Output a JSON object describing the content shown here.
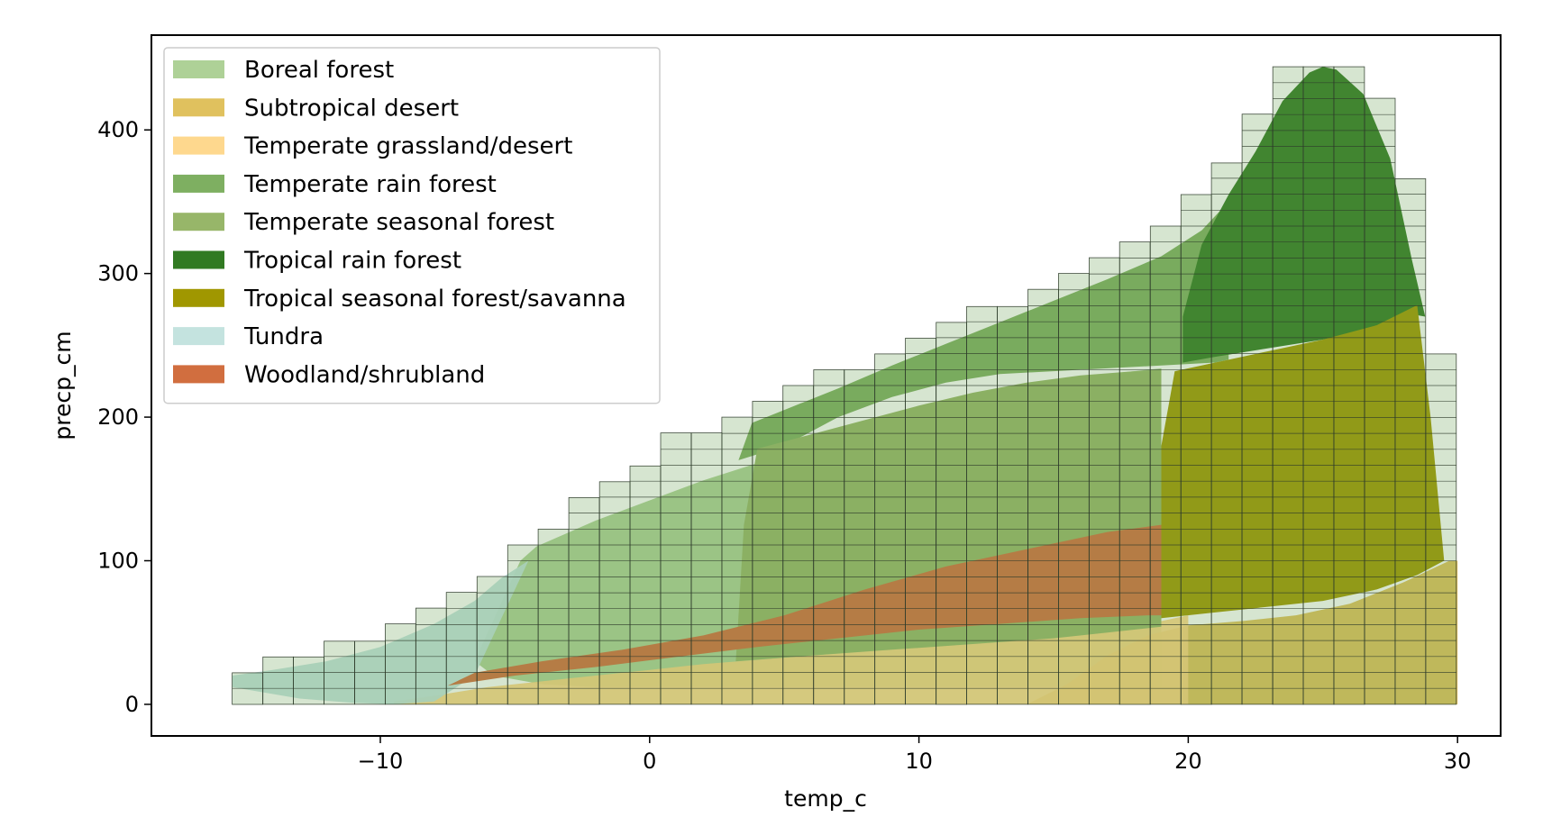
{
  "chart_data": {
    "type": "area",
    "xlabel": "temp_c",
    "ylabel": "precp_cm",
    "xlim": [
      -18.5,
      31.6
    ],
    "ylim": [
      -22,
      466
    ],
    "xticks": [
      {
        "value": -10,
        "label": "−10"
      },
      {
        "value": 0,
        "label": "0"
      },
      {
        "value": 10,
        "label": "10"
      },
      {
        "value": 20,
        "label": "20"
      },
      {
        "value": 30,
        "label": "30"
      }
    ],
    "yticks": [
      {
        "value": 0,
        "label": "0"
      },
      {
        "value": 100,
        "label": "100"
      },
      {
        "value": 200,
        "label": "200"
      },
      {
        "value": 300,
        "label": "300"
      },
      {
        "value": 400,
        "label": "400"
      }
    ],
    "legend_position": "upper-left",
    "grid": false,
    "series": [
      {
        "name": "Boreal forest",
        "color": "#a5cc8c",
        "opacity": 0.9,
        "upper": [
          [
            -4.8,
            100
          ],
          [
            -4.2,
            110
          ],
          [
            -2,
            128
          ],
          [
            0,
            142
          ],
          [
            2,
            156
          ],
          [
            4,
            168
          ],
          [
            6,
            180
          ],
          [
            8,
            192
          ],
          [
            10,
            204
          ],
          [
            12,
            214
          ],
          [
            14,
            222
          ],
          [
            17,
            230
          ],
          [
            19,
            234
          ]
        ],
        "lower": [
          [
            -6.5,
            30
          ],
          [
            -5.8,
            20
          ],
          [
            -4,
            14
          ],
          [
            -2,
            12
          ],
          [
            0,
            12
          ],
          [
            2,
            12
          ],
          [
            4,
            12
          ],
          [
            6,
            12
          ],
          [
            8,
            12
          ],
          [
            10,
            12
          ],
          [
            12,
            12
          ],
          [
            14,
            12
          ],
          [
            17,
            12
          ],
          [
            19,
            12
          ]
        ]
      },
      {
        "name": "Subtropical desert",
        "color": "#ddba4c",
        "opacity": 0.9,
        "upper": [
          [
            14,
            0
          ],
          [
            15.5,
            14
          ],
          [
            17,
            34
          ],
          [
            18.5,
            48
          ],
          [
            20,
            55
          ],
          [
            22,
            58
          ],
          [
            24,
            62
          ],
          [
            26,
            70
          ],
          [
            28,
            85
          ],
          [
            29.7,
            100
          ],
          [
            30,
            100
          ]
        ],
        "lower": [
          [
            14,
            0
          ],
          [
            16,
            0
          ],
          [
            20,
            0
          ],
          [
            25,
            0
          ],
          [
            30,
            0
          ]
        ]
      },
      {
        "name": "Temperate grassland/desert",
        "color": "#fed482",
        "opacity": 0.9,
        "upper": [
          [
            -9.5,
            2
          ],
          [
            -8,
            6
          ],
          [
            -6,
            12
          ],
          [
            -4,
            16
          ],
          [
            -2,
            20
          ],
          [
            0,
            24
          ],
          [
            2,
            28
          ],
          [
            4,
            31
          ],
          [
            6,
            34
          ],
          [
            8,
            37
          ],
          [
            10,
            40
          ],
          [
            12,
            43
          ],
          [
            14,
            46
          ],
          [
            16,
            50
          ],
          [
            18,
            55
          ],
          [
            19,
            58
          ],
          [
            20,
            62
          ]
        ],
        "lower": [
          [
            -9.5,
            0
          ],
          [
            -5,
            0
          ],
          [
            0,
            0
          ],
          [
            5,
            0
          ],
          [
            10,
            0
          ],
          [
            15,
            0
          ],
          [
            20,
            0
          ]
        ]
      },
      {
        "name": "Temperate rain forest",
        "color": "#77ab59",
        "opacity": 0.95,
        "upper": [
          [
            3.3,
            170
          ],
          [
            3.8,
            196
          ],
          [
            5,
            205
          ],
          [
            7,
            220
          ],
          [
            9,
            236
          ],
          [
            11,
            251
          ],
          [
            13,
            266
          ],
          [
            15,
            281
          ],
          [
            17,
            296
          ],
          [
            19,
            312
          ],
          [
            20.5,
            330
          ],
          [
            21.5,
            350
          ]
        ],
        "lower": [
          [
            3.3,
            170
          ],
          [
            5,
            180
          ],
          [
            7,
            200
          ],
          [
            9,
            214
          ],
          [
            11,
            224
          ],
          [
            13,
            230
          ],
          [
            15,
            232
          ],
          [
            17,
            234
          ],
          [
            19,
            236
          ],
          [
            21,
            238
          ],
          [
            21.5,
            240
          ]
        ]
      },
      {
        "name": "Temperate seasonal forest",
        "color": "#97b669",
        "opacity": 1.0,
        "upper": [
          [
            3.2,
            30
          ],
          [
            3.5,
            125
          ],
          [
            4,
            178
          ],
          [
            6,
            188
          ],
          [
            8,
            198
          ],
          [
            10,
            208
          ],
          [
            12,
            217
          ],
          [
            14,
            224
          ],
          [
            16,
            229
          ],
          [
            18,
            232
          ],
          [
            19,
            233
          ]
        ],
        "lower": [
          [
            3.2,
            30
          ],
          [
            6,
            34
          ],
          [
            9,
            38
          ],
          [
            12,
            42
          ],
          [
            15,
            46
          ],
          [
            17,
            50
          ],
          [
            19,
            54
          ]
        ]
      },
      {
        "name": "Tropical rain forest",
        "color": "#317a22",
        "opacity": 1.0,
        "upper": [
          [
            19.8,
            270
          ],
          [
            20.5,
            320
          ],
          [
            21.5,
            355
          ],
          [
            22.5,
            385
          ],
          [
            23.5,
            420
          ],
          [
            24.5,
            440
          ],
          [
            25,
            444
          ],
          [
            25.5,
            442
          ],
          [
            26.5,
            425
          ],
          [
            27.5,
            380
          ],
          [
            28.3,
            310
          ],
          [
            28.8,
            270
          ]
        ],
        "lower": [
          [
            19.8,
            270
          ],
          [
            19.8,
            238
          ],
          [
            21,
            242
          ],
          [
            23,
            248
          ],
          [
            25,
            254
          ],
          [
            27,
            262
          ],
          [
            28.2,
            272
          ],
          [
            28.8,
            270
          ]
        ]
      },
      {
        "name": "Tropical seasonal forest/savanna",
        "color": "#a09700",
        "opacity": 1.0,
        "upper": [
          [
            19,
            60
          ],
          [
            19,
            180
          ],
          [
            19.5,
            232
          ],
          [
            21,
            238
          ],
          [
            23,
            246
          ],
          [
            25,
            254
          ],
          [
            27,
            264
          ],
          [
            28.5,
            278
          ],
          [
            29,
            200
          ],
          [
            29.3,
            140
          ],
          [
            29.5,
            100
          ]
        ],
        "lower": [
          [
            19,
            60
          ],
          [
            21,
            64
          ],
          [
            23,
            68
          ],
          [
            25,
            72
          ],
          [
            27,
            80
          ],
          [
            28.5,
            90
          ],
          [
            29.5,
            100
          ]
        ]
      },
      {
        "name": "Tundra",
        "color": "#c1e1dd",
        "opacity": 0.95,
        "upper": [
          [
            -15.5,
            20
          ],
          [
            -14,
            24
          ],
          [
            -12,
            30
          ],
          [
            -10,
            40
          ],
          [
            -8,
            56
          ],
          [
            -6.5,
            72
          ],
          [
            -5.5,
            88
          ],
          [
            -4.5,
            100
          ]
        ],
        "lower": [
          [
            -15.5,
            12
          ],
          [
            -13,
            4
          ],
          [
            -11,
            1
          ],
          [
            -9.5,
            0
          ],
          [
            -8,
            2
          ],
          [
            -6.5,
            20
          ],
          [
            -5.5,
            60
          ],
          [
            -4.5,
            100
          ]
        ]
      },
      {
        "name": "Woodland/shrubland",
        "color": "#d16e3f",
        "opacity": 1.0,
        "upper": [
          [
            -7.5,
            13
          ],
          [
            -6.5,
            22
          ],
          [
            -4,
            30
          ],
          [
            -1,
            38
          ],
          [
            2,
            48
          ],
          [
            5,
            62
          ],
          [
            8,
            80
          ],
          [
            11,
            96
          ],
          [
            14,
            108
          ],
          [
            17,
            120
          ],
          [
            19,
            125
          ]
        ],
        "lower": [
          [
            -7.5,
            13
          ],
          [
            -5,
            20
          ],
          [
            -2,
            26
          ],
          [
            1,
            33
          ],
          [
            4,
            40
          ],
          [
            7,
            46
          ],
          [
            10,
            52
          ],
          [
            13,
            56
          ],
          [
            16,
            60
          ],
          [
            18.5,
            62
          ],
          [
            19,
            62
          ]
        ]
      }
    ],
    "grid_cells": {
      "cell_width": 1.136,
      "cell_height": 11.1,
      "fill_color": "#6aa356",
      "fill_opacity": 0.28,
      "stroke_color": "#2e3b2a",
      "columns": [
        {
          "x0": -15.5,
          "top": 22
        },
        {
          "x0": -14.36,
          "top": 33
        },
        {
          "x0": -13.23,
          "top": 33
        },
        {
          "x0": -12.09,
          "top": 44
        },
        {
          "x0": -10.95,
          "top": 44
        },
        {
          "x0": -9.82,
          "top": 56
        },
        {
          "x0": -8.68,
          "top": 67
        },
        {
          "x0": -7.55,
          "top": 78
        },
        {
          "x0": -6.41,
          "top": 89
        },
        {
          "x0": -5.27,
          "top": 111
        },
        {
          "x0": -4.14,
          "top": 122
        },
        {
          "x0": -3.0,
          "top": 144
        },
        {
          "x0": -1.86,
          "top": 155
        },
        {
          "x0": -0.73,
          "top": 166
        },
        {
          "x0": 0.41,
          "top": 189
        },
        {
          "x0": 1.55,
          "top": 189
        },
        {
          "x0": 2.68,
          "top": 200
        },
        {
          "x0": 3.82,
          "top": 211
        },
        {
          "x0": 4.95,
          "top": 222
        },
        {
          "x0": 6.09,
          "top": 233
        },
        {
          "x0": 7.23,
          "top": 233
        },
        {
          "x0": 8.36,
          "top": 244
        },
        {
          "x0": 9.5,
          "top": 255
        },
        {
          "x0": 10.64,
          "top": 266
        },
        {
          "x0": 11.77,
          "top": 277
        },
        {
          "x0": 12.91,
          "top": 277
        },
        {
          "x0": 14.05,
          "top": 289
        },
        {
          "x0": 15.18,
          "top": 300
        },
        {
          "x0": 16.32,
          "top": 311
        },
        {
          "x0": 17.45,
          "top": 322
        },
        {
          "x0": 18.59,
          "top": 333
        },
        {
          "x0": 19.73,
          "top": 355
        },
        {
          "x0": 20.86,
          "top": 377
        },
        {
          "x0": 22.0,
          "top": 411
        },
        {
          "x0": 23.14,
          "top": 444
        },
        {
          "x0": 24.27,
          "top": 444
        },
        {
          "x0": 25.41,
          "top": 444
        },
        {
          "x0": 26.55,
          "top": 422
        },
        {
          "x0": 27.68,
          "top": 366
        },
        {
          "x0": 28.82,
          "top": 244
        }
      ]
    }
  }
}
